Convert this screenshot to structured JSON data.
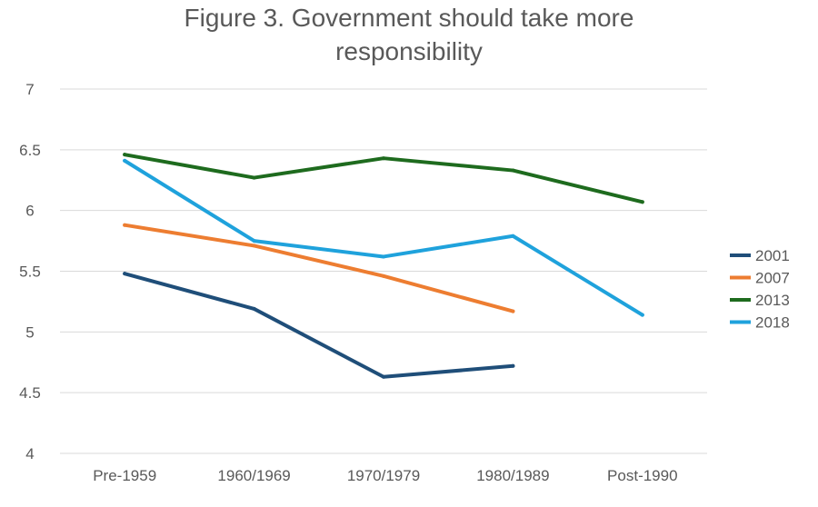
{
  "chart_data": {
    "type": "line",
    "title": "Figure 3. Government should take more responsibility",
    "title_lines": [
      "Figure 3. Government should take more",
      "responsibility"
    ],
    "categories": [
      "Pre-1959",
      "1960/1969",
      "1970/1979",
      "1980/1989",
      "Post-1990"
    ],
    "ylim": [
      4,
      7
    ],
    "yticks": [
      4,
      4.5,
      5,
      5.5,
      6,
      6.5,
      7
    ],
    "ytick_labels": [
      "4",
      "4.5",
      "5",
      "5.5",
      "6",
      "6.5",
      "7"
    ],
    "xlabel": "",
    "ylabel": "",
    "grid": true,
    "legend_position": "right",
    "series": [
      {
        "name": "2001",
        "color": "#1f4e79",
        "values": [
          5.48,
          5.19,
          4.63,
          4.72,
          null
        ]
      },
      {
        "name": "2007",
        "color": "#ed7d31",
        "values": [
          5.88,
          5.71,
          5.46,
          5.17,
          null
        ]
      },
      {
        "name": "2013",
        "color": "#1e6b1e",
        "values": [
          6.46,
          6.27,
          6.43,
          6.33,
          6.07
        ]
      },
      {
        "name": "2018",
        "color": "#1fa2dc",
        "values": [
          6.41,
          5.75,
          5.62,
          5.79,
          5.14
        ]
      }
    ]
  }
}
